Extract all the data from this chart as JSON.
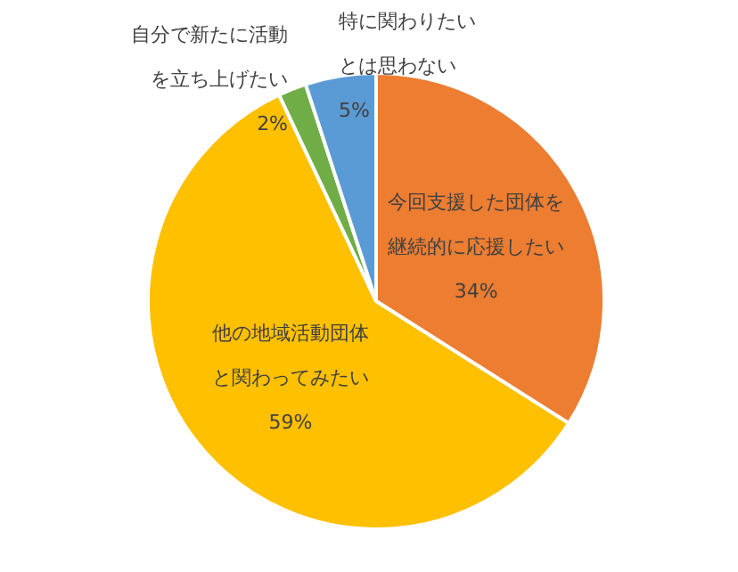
{
  "chart_data": {
    "type": "pie",
    "categories": [
      "今回支援した団体を継続的に応援したい",
      "他の地域活動団体と関わってみたい",
      "自分で新たに活動を立ち上げたい",
      "特に関わりたいとは思わない"
    ],
    "values": [
      34,
      59,
      2,
      5
    ],
    "value_labels": [
      "34%",
      "59%",
      "2%",
      "5%"
    ],
    "colors": [
      "#ed7d31",
      "#ffc000",
      "#70ad47",
      "#5b9bd5"
    ],
    "legend": false
  }
}
